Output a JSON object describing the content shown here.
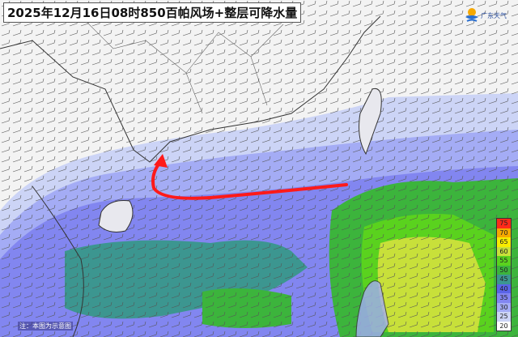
{
  "title": "2025年12月16日08时850百帕风场+整层可降水量",
  "logo": {
    "text": "广东天气",
    "icon": "sun-over-wave-logo-icon"
  },
  "note": "注：本图为示意图",
  "legend": {
    "unit_values": [
      {
        "value": "75",
        "color": "#ff2a1a"
      },
      {
        "value": "70",
        "color": "#f5a800"
      },
      {
        "value": "65",
        "color": "#f8ec00"
      },
      {
        "value": "60",
        "color": "#c8e03a"
      },
      {
        "value": "55",
        "color": "#5ad21e"
      },
      {
        "value": "50",
        "color": "#3cb43c"
      },
      {
        "value": "45",
        "color": "#3c9690"
      },
      {
        "value": "40",
        "color": "#5a64e6"
      },
      {
        "value": "35",
        "color": "#8286f0"
      },
      {
        "value": "30",
        "color": "#a4acf5"
      },
      {
        "value": "25",
        "color": "#ccd4f6"
      },
      {
        "value": "20",
        "color": "#ffffff"
      }
    ]
  },
  "annotation": {
    "arrow_color": "#ff1a1a",
    "meaning": "moisture-transport-arrow"
  }
}
